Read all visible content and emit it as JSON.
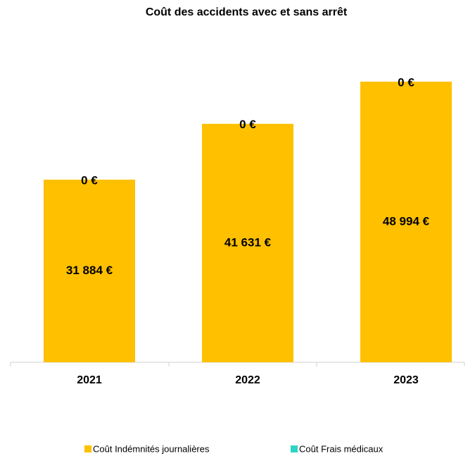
{
  "chart_data": {
    "type": "stacked_bar",
    "title": "Coût des accidents avec et sans arrêt",
    "categories": [
      "2021",
      "2022",
      "2023"
    ],
    "series": [
      {
        "name": "Coût Indémnités journalières",
        "color": "#ffc000",
        "values": [
          31884,
          41631,
          48994
        ],
        "value_labels": [
          "31 884 €",
          "41 631 €",
          "48 994 €"
        ]
      },
      {
        "name": "Coût Frais médicaux",
        "color": "#2dd4c4",
        "values": [
          0,
          0,
          0
        ],
        "value_labels": [
          "0 €",
          "0 €",
          "0 €"
        ]
      }
    ],
    "ylim": [
      0,
      55000
    ]
  }
}
